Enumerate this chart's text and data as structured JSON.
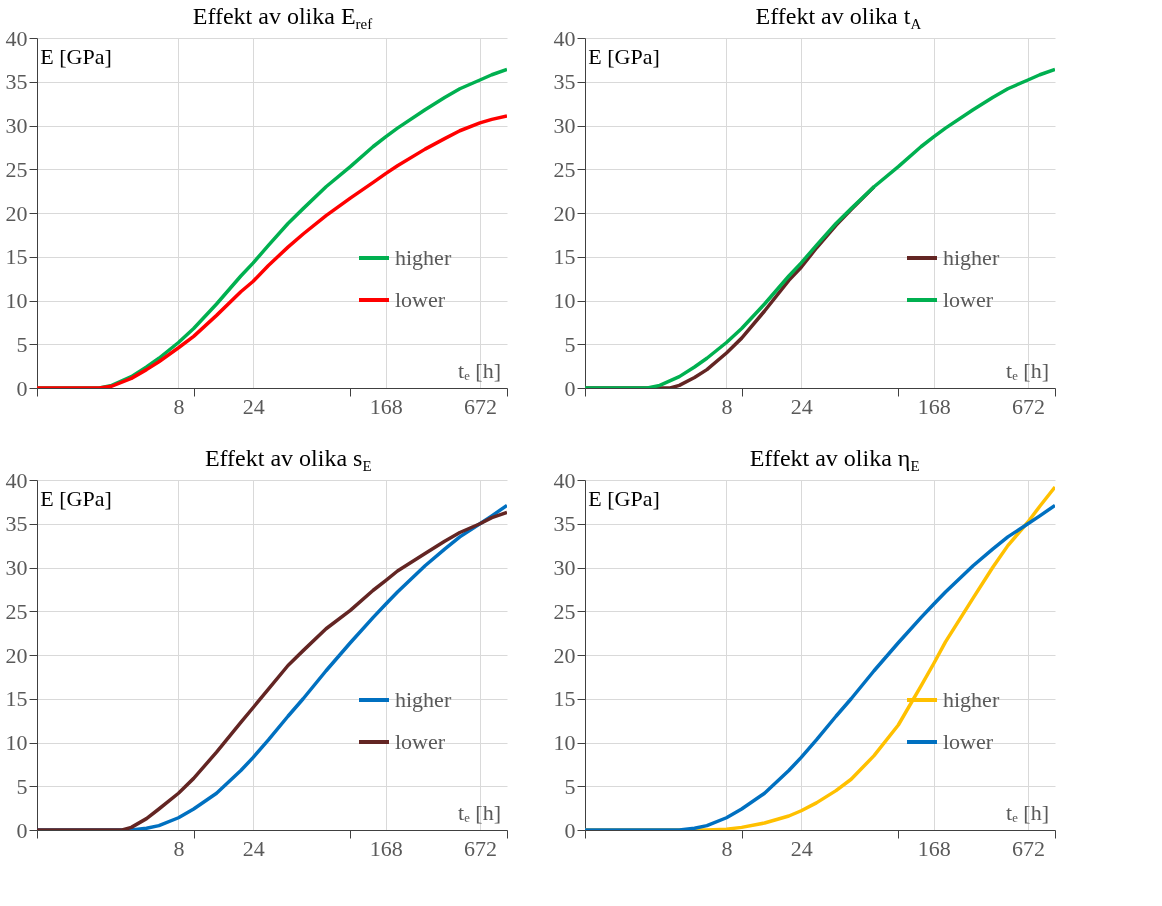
{
  "chart_data": [
    {
      "type": "line",
      "title": "Effekt av olika E$_{ref}$",
      "xlabel": "tₑ [h]",
      "ylabel": "E [GPa]",
      "log": "x",
      "xlim": [
        1,
        1000
      ],
      "xticks": [
        {
          "value": 1,
          "label": null
        },
        8,
        {
          "value": 10,
          "label": null
        },
        24,
        {
          "value": 100,
          "label": null
        },
        168,
        672,
        {
          "value": 1000,
          "label": null
        }
      ],
      "ylim": [
        0,
        40
      ],
      "yticks": [
        0,
        5,
        10,
        15,
        20,
        25,
        30,
        35,
        40
      ],
      "grid": true,
      "legend": "right",
      "series": [
        {
          "name": "higher",
          "color": "#00b050",
          "x": [
            1,
            2,
            2.5,
            3,
            4,
            5,
            6,
            8,
            10,
            14,
            20,
            24,
            30,
            40,
            50,
            70,
            100,
            140,
            168,
            200,
            300,
            400,
            500,
            672,
            800,
            1000
          ],
          "values": [
            0,
            0,
            0,
            0.3,
            1.3,
            2.4,
            3.4,
            5.2,
            6.8,
            9.6,
            12.8,
            14.3,
            16.3,
            18.8,
            20.5,
            23.0,
            25.3,
            27.6,
            28.7,
            29.7,
            31.8,
            33.2,
            34.2,
            35.2,
            35.8,
            36.4
          ]
        },
        {
          "name": "lower",
          "color": "#ff0000",
          "x": [
            1,
            2,
            2.5,
            3,
            4,
            5,
            6,
            8,
            10,
            14,
            20,
            24,
            30,
            40,
            50,
            70,
            100,
            140,
            168,
            200,
            300,
            400,
            500,
            672,
            800,
            1000
          ],
          "values": [
            0,
            0,
            0,
            0.2,
            1.1,
            2.1,
            3.0,
            4.6,
            5.9,
            8.3,
            11.0,
            12.2,
            14.0,
            16.1,
            17.6,
            19.7,
            21.7,
            23.5,
            24.5,
            25.4,
            27.3,
            28.5,
            29.4,
            30.3,
            30.7,
            31.1
          ]
        }
      ]
    },
    {
      "type": "line",
      "title": "Effekt av olika t$_{A}$",
      "xlabel": "tₑ [h]",
      "ylabel": "E [GPa]",
      "log": "x",
      "xlim": [
        1,
        1000
      ],
      "xticks": [
        {
          "value": 1,
          "label": null
        },
        8,
        {
          "value": 10,
          "label": null
        },
        24,
        {
          "value": 100,
          "label": null
        },
        168,
        672,
        {
          "value": 1000,
          "label": null
        }
      ],
      "ylim": [
        0,
        40
      ],
      "yticks": [
        0,
        5,
        10,
        15,
        20,
        25,
        30,
        35,
        40
      ],
      "grid": true,
      "legend": "right",
      "series": [
        {
          "name": "higher",
          "color": "#632523",
          "x": [
            1,
            3,
            3.5,
            4,
            5,
            6,
            8,
            10,
            14,
            20,
            24,
            30,
            40,
            50,
            70
          ],
          "values": [
            0,
            0,
            0,
            0.3,
            1.2,
            2.1,
            4.0,
            5.7,
            8.8,
            12.3,
            13.8,
            16.0,
            18.6,
            20.4,
            23.0
          ]
        },
        {
          "name": "lower",
          "color": "#00b050",
          "x": [
            1,
            2,
            2.5,
            3,
            4,
            5,
            6,
            8,
            10,
            14,
            20,
            24,
            30,
            40,
            50,
            70,
            100,
            140,
            168,
            200,
            300,
            400,
            500,
            672,
            800,
            1000
          ],
          "values": [
            0,
            0,
            0,
            0.3,
            1.3,
            2.4,
            3.4,
            5.2,
            6.8,
            9.6,
            12.8,
            14.3,
            16.3,
            18.8,
            20.5,
            23.0,
            25.3,
            27.6,
            28.7,
            29.7,
            31.8,
            33.2,
            34.2,
            35.2,
            35.8,
            36.4
          ]
        }
      ]
    },
    {
      "type": "line",
      "title": "Effekt av olika s$_{E}$",
      "xlabel": "tₑ [h]",
      "ylabel": "E [GPa]",
      "log": "x",
      "xlim": [
        1,
        1000
      ],
      "xticks": [
        {
          "value": 1,
          "label": null
        },
        8,
        {
          "value": 10,
          "label": null
        },
        24,
        {
          "value": 100,
          "label": null
        },
        168,
        672,
        {
          "value": 1000,
          "label": null
        }
      ],
      "ylim": [
        0,
        40
      ],
      "yticks": [
        0,
        5,
        10,
        15,
        20,
        25,
        30,
        35,
        40
      ],
      "grid": true,
      "legend": "right",
      "series": [
        {
          "name": "higher",
          "color": "#0070c0",
          "x": [
            1,
            3,
            4,
            5,
            6,
            8,
            10,
            14,
            20,
            24,
            30,
            40,
            50,
            70,
            100,
            140,
            168,
            200,
            300,
            400,
            500,
            672,
            800,
            1000
          ],
          "values": [
            0,
            0,
            0,
            0.2,
            0.5,
            1.4,
            2.4,
            4.2,
            6.8,
            8.3,
            10.3,
            13.0,
            15.0,
            18.2,
            21.4,
            24.3,
            25.8,
            27.2,
            30.2,
            32.1,
            33.5,
            35.0,
            35.9,
            37.1
          ]
        },
        {
          "name": "lower",
          "color": "#632523",
          "x": [
            1,
            3,
            3.5,
            4,
            5,
            6,
            8,
            10,
            14,
            20,
            24,
            30,
            40,
            50,
            70,
            100,
            140,
            168,
            200,
            300,
            400,
            500,
            672,
            800,
            1000
          ],
          "values": [
            0,
            0,
            0,
            0.3,
            1.3,
            2.4,
            4.2,
            5.9,
            8.9,
            12.3,
            14.0,
            16.1,
            18.8,
            20.5,
            23.0,
            25.1,
            27.4,
            28.5,
            29.6,
            31.6,
            33.0,
            34.0,
            35.0,
            35.7,
            36.3
          ]
        }
      ]
    },
    {
      "type": "line",
      "title": "Effekt av olika η$_{E}$",
      "xlabel": "tₑ [h]",
      "ylabel": "E [GPa]",
      "log": "x",
      "xlim": [
        1,
        1000
      ],
      "xticks": [
        {
          "value": 1,
          "label": null
        },
        8,
        {
          "value": 10,
          "label": null
        },
        24,
        {
          "value": 100,
          "label": null
        },
        168,
        672,
        {
          "value": 1000,
          "label": null
        }
      ],
      "ylim": [
        0,
        40
      ],
      "yticks": [
        0,
        5,
        10,
        15,
        20,
        25,
        30,
        35,
        40
      ],
      "grid": true,
      "legend": "right",
      "series": [
        {
          "name": "higher",
          "color": "#ffc000",
          "x": [
            1,
            5,
            6,
            8,
            10,
            14,
            20,
            24,
            30,
            40,
            50,
            70,
            100,
            140,
            168,
            200,
            300,
            400,
            500,
            672,
            800,
            1000
          ],
          "values": [
            0,
            0,
            0,
            0.1,
            0.3,
            0.8,
            1.6,
            2.2,
            3.1,
            4.5,
            5.8,
            8.5,
            12.0,
            16.5,
            19.0,
            21.5,
            26.5,
            30.0,
            32.5,
            35.2,
            37.0,
            39.2
          ]
        },
        {
          "name": "lower",
          "color": "#0070c0",
          "x": [
            1,
            3,
            4,
            5,
            6,
            8,
            10,
            14,
            20,
            24,
            30,
            40,
            50,
            70,
            100,
            140,
            168,
            200,
            300,
            400,
            500,
            672,
            800,
            1000
          ],
          "values": [
            0,
            0,
            0,
            0.2,
            0.5,
            1.4,
            2.4,
            4.2,
            6.8,
            8.3,
            10.3,
            13.0,
            15.0,
            18.2,
            21.4,
            24.3,
            25.8,
            27.2,
            30.2,
            32.1,
            33.5,
            35.0,
            35.9,
            37.1
          ]
        }
      ]
    }
  ]
}
